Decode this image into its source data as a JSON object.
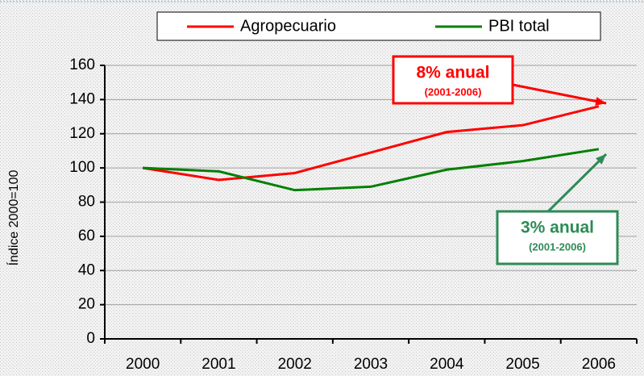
{
  "chart_data": {
    "type": "line",
    "y_label": "Índice 2000=100",
    "categories": [
      "2000",
      "2001",
      "2002",
      "2003",
      "2004",
      "2005",
      "2006"
    ],
    "series": [
      {
        "name": "Agropecuario",
        "color": "#ff0000",
        "values": [
          100,
          93,
          97,
          109,
          121,
          125,
          136
        ]
      },
      {
        "name": "PBI total",
        "color": "#008000",
        "values": [
          100,
          98,
          87,
          89,
          99,
          104,
          111
        ]
      }
    ],
    "ylim": [
      0,
      160
    ],
    "yticks": [
      0,
      20,
      40,
      60,
      80,
      100,
      120,
      140,
      160
    ],
    "grid": true,
    "legend": "top",
    "annotations": [
      {
        "text": "8% anual",
        "subtext": "(2001-2006)",
        "color": "#ff0000"
      },
      {
        "text": "3% anual",
        "subtext": "(2001-2006)",
        "color": "#2e8b57"
      }
    ]
  }
}
